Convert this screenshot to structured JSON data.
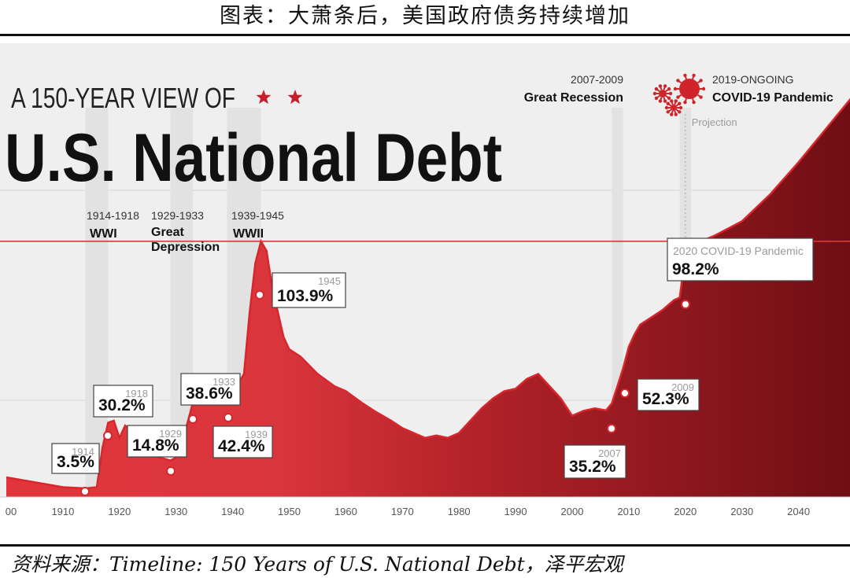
{
  "caption": {
    "title": "图表：大萧条后，美国政府债务持续增加",
    "source": "资料来源：Timeline: 150 Years of U.S. National Debt，泽平宏观"
  },
  "chart_data": {
    "type": "area",
    "kicker": "A 150-YEAR VIEW OF",
    "title": "U.S. National Debt",
    "xlim": [
      1900,
      2050
    ],
    "ylim": [
      0,
      170
    ],
    "x_ticks": [
      "00",
      "1910",
      "1920",
      "1930",
      "1940",
      "1950",
      "1960",
      "1970",
      "1980",
      "1990",
      "2000",
      "2010",
      "2020",
      "2030",
      "2040"
    ],
    "reference_line": 103.9,
    "projection_label": "Projection",
    "projection_start": 2020,
    "series": [
      {
        "name": "",
        "x": [
          1900,
          1905,
          1910,
          1914,
          1916,
          1917,
          1918,
          1919,
          1920,
          1921,
          1922,
          1923,
          1924,
          1925,
          1926,
          1927,
          1928,
          1929,
          1930,
          1931,
          1932,
          1933,
          1934,
          1935,
          1936,
          1937,
          1938,
          1939,
          1940,
          1941,
          1942,
          1943,
          1944,
          1945,
          1946,
          1947,
          1948,
          1949,
          1950,
          1952,
          1955,
          1958,
          1960,
          1963,
          1965,
          1968,
          1970,
          1972,
          1974,
          1976,
          1978,
          1980,
          1982,
          1984,
          1986,
          1988,
          1990,
          1992,
          1994,
          1996,
          1998,
          2000,
          2002,
          2004,
          2006,
          2007,
          2008,
          2009,
          2010,
          2011,
          2012,
          2014,
          2016,
          2018,
          2019,
          2020,
          2021,
          2022,
          2025,
          2030,
          2035,
          2040,
          2045,
          2050
        ],
        "y": [
          8,
          6,
          4,
          3.5,
          4,
          20,
          30.2,
          31,
          24,
          29,
          27,
          25,
          22,
          20,
          18,
          16,
          15.5,
          14.8,
          16,
          22,
          30,
          38.6,
          40,
          41,
          40,
          39,
          41,
          42.4,
          45,
          46,
          50,
          75,
          95,
          103.9,
          100,
          85,
          75,
          65,
          60,
          57,
          50,
          45,
          43,
          38,
          35,
          31,
          28,
          26,
          24,
          25,
          24,
          26,
          31,
          36,
          40,
          43,
          44,
          48,
          50,
          45,
          40,
          33,
          35,
          36,
          35.2,
          38,
          45,
          52.3,
          61,
          66,
          70,
          73,
          76,
          80,
          81,
          98.2,
          103,
          103.2,
          106,
          112,
          123,
          136,
          150,
          164
        ]
      }
    ],
    "events": [
      {
        "years": "1914-1918",
        "name": "WWI"
      },
      {
        "years": "1929-1933",
        "name": "Great Depression"
      },
      {
        "years": "1939-1945",
        "name": "WWII"
      },
      {
        "years": "2007-2009",
        "name": "Great Recession"
      },
      {
        "years": "2019-ONGOING",
        "name": "COVID-19 Pandemic"
      }
    ],
    "callouts": [
      {
        "year": "1914",
        "value": "3.5%"
      },
      {
        "year": "1918",
        "value": "30.2%"
      },
      {
        "year": "1929",
        "value": "14.8%"
      },
      {
        "year": "1933",
        "value": "38.6%"
      },
      {
        "year": "1939",
        "value": "42.4%"
      },
      {
        "year": "1945",
        "value": "103.9%"
      },
      {
        "year": "2007",
        "value": "35.2%"
      },
      {
        "year": "2009",
        "value": "52.3%"
      },
      {
        "year": "2020 COVID-19 Pandemic",
        "value": "98.2%"
      }
    ],
    "colors": {
      "area_light": "#e2353b",
      "area_dark": "#6e0e14",
      "line": "#d8262d",
      "reference": "#d83a3a",
      "star": "#c8202a"
    }
  }
}
